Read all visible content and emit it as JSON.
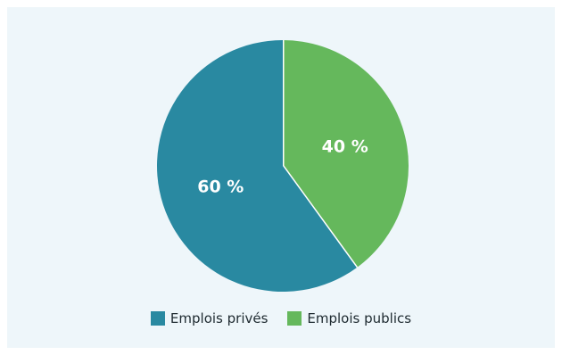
{
  "chart_data": {
    "type": "pie",
    "slices": [
      {
        "name": "Emplois publics",
        "value": 40,
        "label": "40 %",
        "color": "#65b85c"
      },
      {
        "name": "Emplois privés",
        "value": 60,
        "label": "60 %",
        "color": "#2989a1"
      }
    ],
    "start": "12 o'clock",
    "direction": "clockwise",
    "legend_position": "bottom-center"
  },
  "legend": [
    {
      "label": "Emplois privés",
      "color": "#2989a1"
    },
    {
      "label": "Emplois publics",
      "color": "#65b85c"
    }
  ],
  "colors": {
    "background": "#eef6fa",
    "divider": "#ffffff"
  }
}
